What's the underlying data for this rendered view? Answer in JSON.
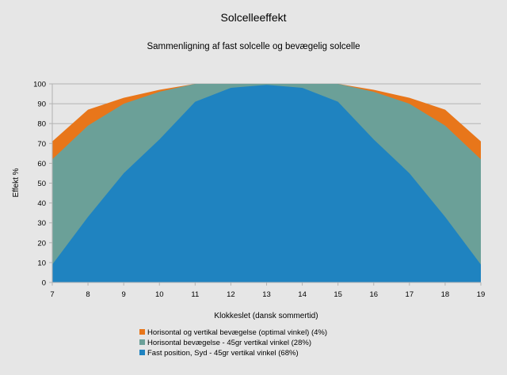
{
  "chart_data": {
    "type": "area",
    "title": "Solcelleeffekt",
    "subtitle": "Sammenligning af fast solcelle og bevægelig solcelle",
    "xlabel": "Klokkeslet (dansk sommertid)",
    "ylabel": "Effekt %",
    "ylim": [
      0,
      100
    ],
    "yticks": [
      0,
      10,
      20,
      30,
      40,
      50,
      60,
      70,
      80,
      90,
      100
    ],
    "x": [
      7,
      8,
      9,
      10,
      11,
      12,
      13,
      14,
      15,
      16,
      17,
      18,
      19
    ],
    "grid": true,
    "legend_position": "bottom",
    "series": [
      {
        "name": "Horisontal og vertikal bevægelse (optimal vinkel) (4%)",
        "color": "#e8761a",
        "values": [
          71,
          87,
          93,
          97,
          100,
          100,
          100,
          100,
          100,
          97,
          93,
          87,
          71
        ]
      },
      {
        "name": "Horisontal bevægelse - 45gr vertikal vinkel (28%)",
        "color": "#6ba098",
        "values": [
          62,
          79,
          90,
          96,
          100,
          100,
          100,
          100,
          100,
          96,
          90,
          79,
          62
        ]
      },
      {
        "name": "Fast position, Syd - 45gr vertikal vinkel (68%)",
        "color": "#1f83c0",
        "values": [
          9,
          33,
          55,
          72,
          91,
          98,
          99.5,
          98,
          91,
          72,
          55,
          33,
          9
        ]
      }
    ]
  }
}
